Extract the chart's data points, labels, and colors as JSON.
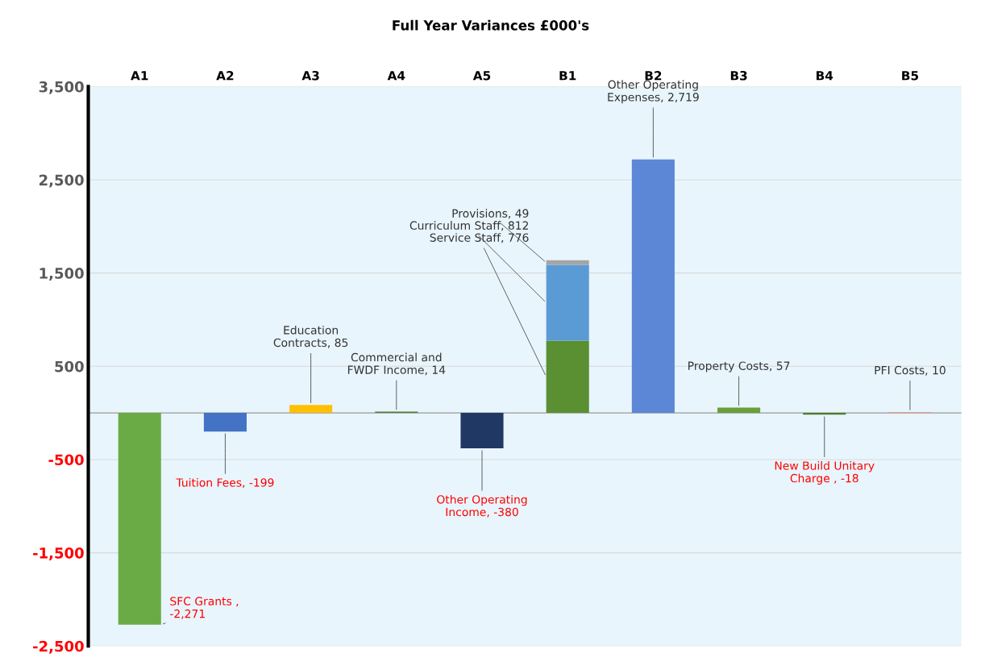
{
  "chart_data": {
    "type": "bar",
    "title": "Full Year Variances £000's",
    "categories": [
      "A1",
      "A2",
      "A3",
      "A4",
      "A5",
      "B1",
      "B2",
      "B3",
      "B4",
      "B5"
    ],
    "stacked": true,
    "series": [
      {
        "colors": [
          "#6aab45",
          "#4472c4",
          "#ffc000",
          "#4e7d2e",
          "#203864",
          "#5a8f32",
          "#5b87d6",
          "#6a9f3a",
          "#4e7d2e",
          "#e8a08a"
        ],
        "values": [
          -2271,
          -199,
          85,
          14,
          -380,
          776,
          2719,
          57,
          -18,
          10
        ],
        "value_labels": [
          "SFC Grants , -2,271",
          "Tuition Fees, -199",
          "Education Contracts, 85",
          "Commercial and FWDF Income, 14",
          "Other Operating Income, -380",
          "Service Staff, 776",
          "Other Operating Expenses, 2,719",
          "Property Costs, 57",
          "New Build Unitary Charge , -18",
          "PFI Costs, 10"
        ]
      },
      {
        "color": "#5b9bd5",
        "values": [
          null,
          null,
          null,
          null,
          null,
          812,
          null,
          null,
          null,
          null
        ],
        "value_labels": [
          null,
          null,
          null,
          null,
          null,
          "Curriculum Staff, 812",
          null,
          null,
          null,
          null
        ]
      },
      {
        "color": "#a5a5a5",
        "values": [
          null,
          null,
          null,
          null,
          null,
          49,
          null,
          null,
          null,
          null
        ],
        "value_labels": [
          null,
          null,
          null,
          null,
          null,
          "Provisions, 49",
          null,
          null,
          null,
          null
        ]
      }
    ],
    "ylim": [
      -2500,
      3500
    ],
    "yticks": [
      {
        "value": 3500,
        "label": "3,500"
      },
      {
        "value": 2500,
        "label": "2,500"
      },
      {
        "value": 1500,
        "label": "1,500"
      },
      500,
      -500,
      {
        "value": -1500,
        "label": "-1,500"
      },
      {
        "value": -2500,
        "label": "-2,500"
      }
    ],
    "grid": "y",
    "legend": false
  }
}
